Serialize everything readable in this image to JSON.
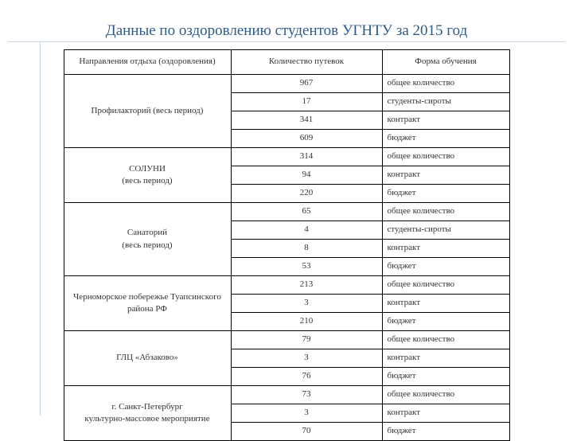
{
  "title": "Данные по оздоровлению студентов УГНТУ за 2015 год",
  "col_widths": {
    "c1": 210,
    "c2": 190,
    "c3": 160
  },
  "headers": {
    "h1": "Направления отдыха (оздоровления)",
    "h2": "Количество путевок",
    "h3": "Форма обучения"
  },
  "groups": [
    {
      "label": "Профилакторий (весь период)",
      "rows": [
        {
          "num": "967",
          "form": "общее количество"
        },
        {
          "num": "17",
          "form": "студенты-сироты"
        },
        {
          "num": "341",
          "form": "контракт"
        },
        {
          "num": "609",
          "form": "бюджет"
        }
      ]
    },
    {
      "label": "СОЛУНИ\n(весь период)",
      "rows": [
        {
          "num": "314",
          "form": "общее количество"
        },
        {
          "num": "94",
          "form": "контракт"
        },
        {
          "num": "220",
          "form": "бюджет"
        }
      ]
    },
    {
      "label": "Санаторий\n(весь период)",
      "rows": [
        {
          "num": "65",
          "form": "общее количество"
        },
        {
          "num": "4",
          "form": "студенты-сироты"
        },
        {
          "num": "8",
          "form": "контракт"
        },
        {
          "num": "53",
          "form": "бюджет"
        }
      ]
    },
    {
      "label": "Черноморское побережье Туапсинского района РФ",
      "rows": [
        {
          "num": "213",
          "form": "общее количество"
        },
        {
          "num": "3",
          "form": "контракт"
        },
        {
          "num": "210",
          "form": "бюджет"
        }
      ]
    },
    {
      "label": "ГЛЦ «Абзаково»",
      "rows": [
        {
          "num": "79",
          "form": "общее количество"
        },
        {
          "num": "3",
          "form": "контракт"
        },
        {
          "num": "76",
          "form": "бюджет"
        }
      ]
    },
    {
      "label": "г. Санкт-Петербург\nкультурно-массовое мероприятие",
      "rows": [
        {
          "num": "73",
          "form": "общее количество"
        },
        {
          "num": "3",
          "form": "контракт"
        },
        {
          "num": "70",
          "form": "бюджет"
        }
      ]
    }
  ]
}
